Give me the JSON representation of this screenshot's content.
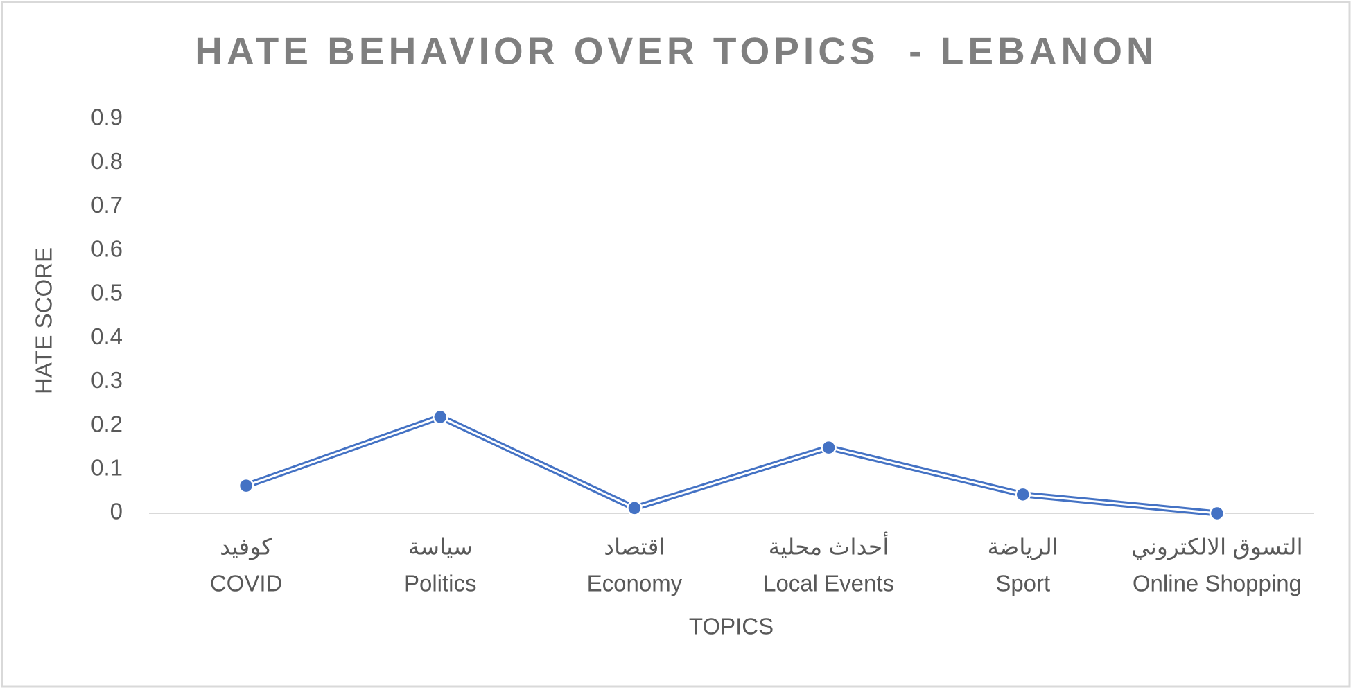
{
  "chart_data": {
    "type": "line",
    "title": "HATE BEHAVIOR OVER TOPICS  - LEBANON",
    "x_label": "TOPICS",
    "y_label": "HATE SCORE",
    "categories": [
      [
        "كوفيد",
        "COVID"
      ],
      [
        "سياسة",
        "Politics"
      ],
      [
        "اقتصاد",
        "Economy"
      ],
      [
        "أحداث محلية",
        "Local Events"
      ],
      [
        "الرياضة",
        "Sport"
      ],
      [
        "التسوق الالكتروني",
        "Online Shopping"
      ]
    ],
    "series": [
      {
        "name": "Hate score",
        "color": "#4472c4",
        "values": [
          0.063,
          0.22,
          0.012,
          0.15,
          0.043,
          0.0
        ]
      }
    ],
    "ylim": [
      0,
      0.9
    ],
    "yticks": [
      0,
      0.1,
      0.2,
      0.3,
      0.4,
      0.5,
      0.6,
      0.7,
      0.8,
      0.9
    ],
    "grid": false
  }
}
